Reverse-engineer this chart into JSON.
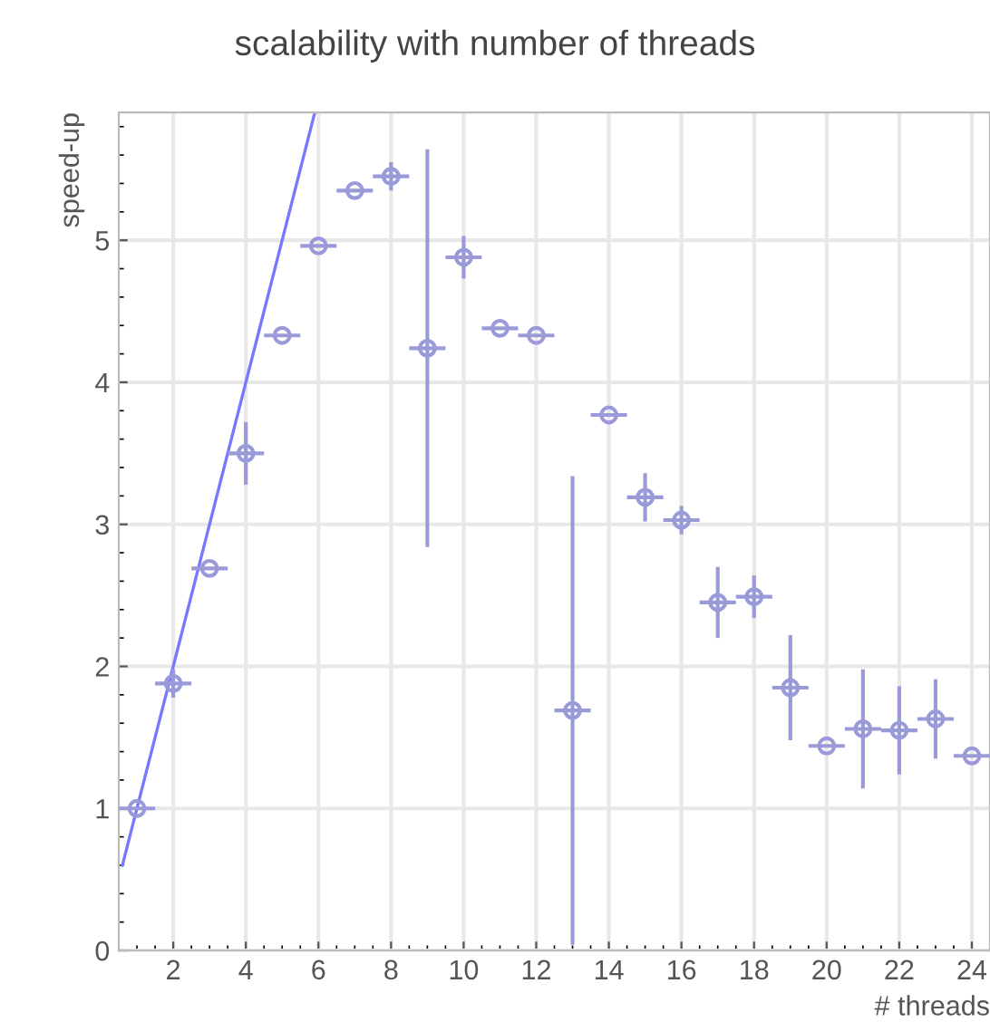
{
  "chart_data": {
    "type": "scatter",
    "title": "scalability with number of threads",
    "xlabel": "# threads",
    "ylabel": "speed-up",
    "xlim": [
      0.5,
      24.5
    ],
    "ylim": [
      0,
      5.9
    ],
    "xticks": [
      2,
      4,
      6,
      8,
      10,
      12,
      14,
      16,
      18,
      20,
      22,
      24
    ],
    "yticks": [
      0,
      1,
      2,
      3,
      4,
      5
    ],
    "grid": true,
    "series": [
      {
        "color": "#9a9ad8",
        "marker": "circle",
        "x": [
          1,
          2,
          3,
          4,
          5,
          6,
          7,
          8,
          9,
          10,
          11,
          12,
          13,
          14,
          15,
          16,
          17,
          18,
          19,
          20,
          21,
          22,
          23,
          24
        ],
        "values": [
          1.0,
          1.88,
          2.69,
          3.5,
          4.33,
          4.96,
          5.35,
          5.45,
          4.24,
          4.88,
          4.38,
          4.33,
          1.69,
          3.77,
          3.19,
          3.03,
          2.45,
          2.49,
          1.85,
          1.44,
          1.56,
          1.55,
          1.63,
          1.37
        ],
        "errors": [
          null,
          0.1,
          null,
          0.22,
          null,
          null,
          null,
          0.1,
          1.4,
          0.15,
          null,
          null,
          1.65,
          null,
          0.17,
          0.1,
          0.25,
          0.15,
          0.37,
          null,
          0.42,
          0.31,
          0.28,
          null
        ],
        "xerrors": [
          0.5,
          0.5,
          0.5,
          0.5,
          0.5,
          0.5,
          0.5,
          0.5,
          0.5,
          0.5,
          0.5,
          0.5,
          0.5,
          0.5,
          0.5,
          0.5,
          0.5,
          0.5,
          0.5,
          0.5,
          0.5,
          0.5,
          0.5,
          0.5
        ]
      },
      {
        "type": "line",
        "color": "#7777ff",
        "x": [
          0.6,
          5.9
        ],
        "values": [
          0.6,
          5.9
        ],
        "line_style": "solid"
      }
    ]
  }
}
